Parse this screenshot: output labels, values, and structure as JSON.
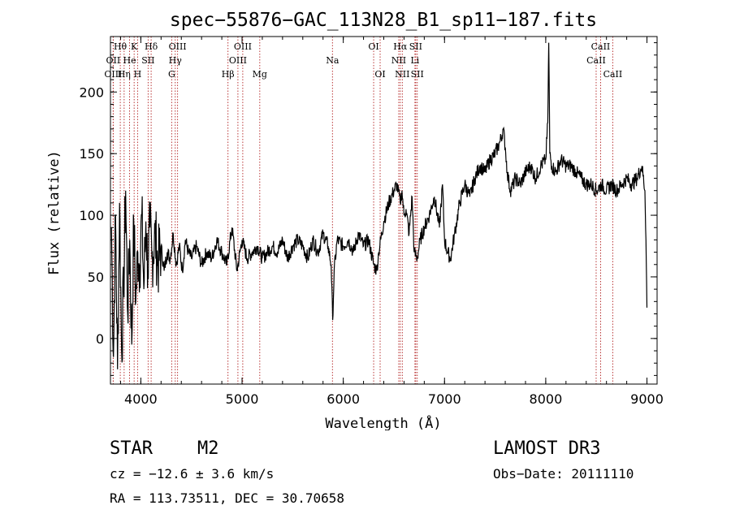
{
  "chart_data": {
    "type": "line",
    "title": "spec−55876−GAC_113N28_B1_sp11−187.fits",
    "xlabel": "Wavelength (Å)",
    "ylabel": "Flux (relative)",
    "xlim": [
      3700,
      9100
    ],
    "ylim": [
      -37,
      245
    ],
    "x_ticks": [
      4000,
      5000,
      6000,
      7000,
      8000,
      9000
    ],
    "y_ticks": [
      0,
      50,
      100,
      150,
      200
    ],
    "grid": false,
    "legend": "none",
    "line_color": "#000000",
    "marker_color": "#b22222",
    "series": [
      {
        "name": "flux",
        "x": [
          3710,
          3730,
          3750,
          3770,
          3790,
          3810,
          3830,
          3850,
          3870,
          3890,
          3910,
          3930,
          3950,
          3970,
          3990,
          4010,
          4030,
          4050,
          4070,
          4090,
          4110,
          4140,
          4170,
          4200,
          4230,
          4260,
          4290,
          4320,
          4350,
          4380,
          4410,
          4440,
          4470,
          4500,
          4550,
          4600,
          4650,
          4700,
          4750,
          4800,
          4850,
          4900,
          4950,
          5000,
          5050,
          5100,
          5150,
          5200,
          5250,
          5300,
          5350,
          5400,
          5450,
          5500,
          5550,
          5600,
          5650,
          5700,
          5750,
          5800,
          5850,
          5880,
          5895,
          5910,
          5940,
          6000,
          6050,
          6100,
          6150,
          6200,
          6250,
          6300,
          6330,
          6350,
          6400,
          6450,
          6500,
          6530,
          6563,
          6580,
          6600,
          6620,
          6650,
          6680,
          6700,
          6730,
          6760,
          6800,
          6850,
          6900,
          6950,
          6980,
          7000,
          7030,
          7060,
          7100,
          7150,
          7200,
          7250,
          7300,
          7350,
          7400,
          7450,
          7500,
          7550,
          7580,
          7600,
          7620,
          7650,
          7680,
          7700,
          7750,
          7800,
          7850,
          7900,
          7950,
          8000,
          8020,
          8030,
          8040,
          8060,
          8100,
          8150,
          8200,
          8250,
          8300,
          8350,
          8400,
          8450,
          8500,
          8550,
          8600,
          8650,
          8700,
          8750,
          8800,
          8850,
          8900,
          8950,
          8980,
          8990,
          9000
        ],
        "y": [
          90,
          -15,
          100,
          -25,
          110,
          -10,
          40,
          120,
          20,
          80,
          -5,
          95,
          30,
          70,
          60,
          100,
          40,
          95,
          55,
          90,
          65,
          85,
          60,
          75,
          55,
          70,
          65,
          85,
          60,
          75,
          55,
          80,
          70,
          65,
          75,
          60,
          70,
          65,
          80,
          70,
          60,
          90,
          55,
          80,
          65,
          70,
          75,
          65,
          70,
          75,
          70,
          80,
          65,
          75,
          80,
          75,
          65,
          80,
          70,
          85,
          75,
          60,
          15,
          55,
          80,
          75,
          80,
          70,
          85,
          75,
          80,
          60,
          55,
          70,
          95,
          110,
          120,
          125,
          110,
          120,
          100,
          105,
          85,
          115,
          70,
          65,
          80,
          90,
          100,
          115,
          90,
          125,
          80,
          70,
          65,
          85,
          110,
          125,
          115,
          130,
          140,
          135,
          145,
          150,
          160,
          170,
          155,
          135,
          120,
          125,
          130,
          125,
          135,
          140,
          130,
          140,
          145,
          175,
          240,
          150,
          140,
          135,
          145,
          140,
          140,
          135,
          130,
          125,
          125,
          120,
          125,
          120,
          125,
          120,
          125,
          130,
          125,
          130,
          140,
          120,
          80,
          25
        ]
      }
    ],
    "lines": [
      {
        "label": "Hθ",
        "x": 3797
      },
      {
        "label": "OII",
        "x": 3727
      },
      {
        "label": "OIII",
        "x": 3727
      },
      {
        "label": "He",
        "x": 3889
      },
      {
        "label": "Hη",
        "x": 3835
      },
      {
        "label": "K",
        "x": 3934
      },
      {
        "label": "H",
        "x": 3968
      },
      {
        "label": "SII",
        "x": 4072
      },
      {
        "label": "Hδ",
        "x": 4102
      },
      {
        "label": "OIII",
        "x": 4363
      },
      {
        "label": "Hγ",
        "x": 4340
      },
      {
        "label": "G",
        "x": 4305
      },
      {
        "label": "OIII",
        "x": 5007
      },
      {
        "label": "OIII",
        "x": 4959
      },
      {
        "label": "Hβ",
        "x": 4861
      },
      {
        "label": "Mg",
        "x": 5175
      },
      {
        "label": "Na",
        "x": 5893
      },
      {
        "label": "OI",
        "x": 6300
      },
      {
        "label": "OI",
        "x": 6364
      },
      {
        "label": "Hα",
        "x": 6563
      },
      {
        "label": "NII",
        "x": 6548
      },
      {
        "label": "NII",
        "x": 6583
      },
      {
        "label": "SII",
        "x": 6716
      },
      {
        "label": "Li",
        "x": 6708
      },
      {
        "label": "SII",
        "x": 6731
      },
      {
        "label": "CaII",
        "x": 8542
      },
      {
        "label": "CaII",
        "x": 8498
      },
      {
        "label": "CaII",
        "x": 8662
      }
    ]
  },
  "info": {
    "class_label": "STAR",
    "subclass": "M2",
    "survey": "LAMOST DR3",
    "cz": "cz = −12.6 ± 3.6 km/s",
    "obs_date": "Obs−Date: 20111110",
    "coords": "RA = 113.73511, DEC =  30.70658"
  }
}
